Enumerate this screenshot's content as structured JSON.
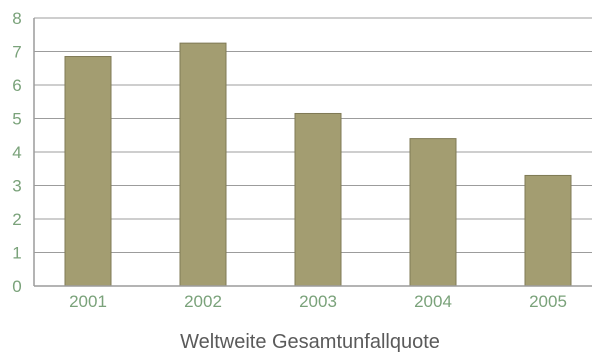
{
  "chart_data": {
    "type": "bar",
    "categories": [
      "2001",
      "2002",
      "2003",
      "2004",
      "2005"
    ],
    "values": [
      6.85,
      7.25,
      5.15,
      4.4,
      3.3
    ],
    "title": "",
    "xlabel": "Weltweite Gesamtunfallquote",
    "ylabel": "",
    "ylim": [
      0,
      8
    ],
    "yticks": [
      "0",
      "1",
      "2",
      "3",
      "4",
      "5",
      "6",
      "7",
      "8"
    ],
    "grid": true,
    "legend": "none",
    "colors": {
      "bar": "#a39d71",
      "bar_edge": "#7f7a55",
      "grid": "#9c9c9c",
      "axis": "#9c9c9c",
      "tick_text": "#7aa27a",
      "xlabel_text": "#5a5a5a"
    }
  }
}
